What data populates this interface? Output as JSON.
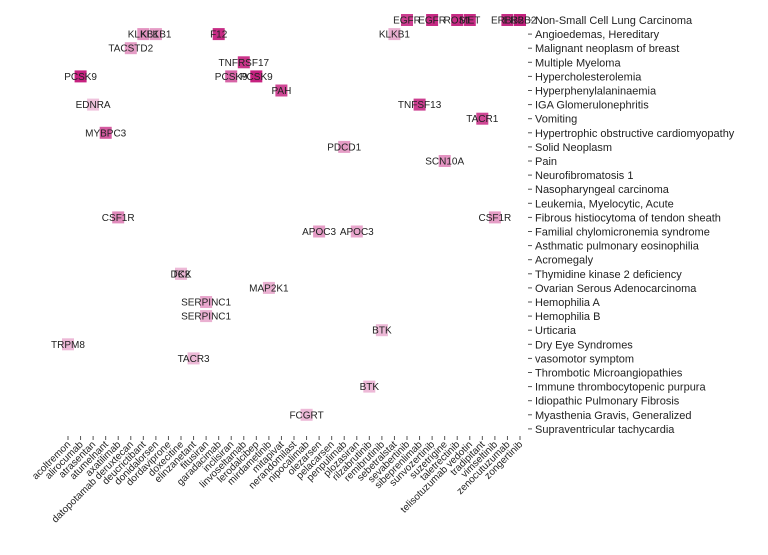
{
  "chart_data": {
    "type": "heatmap",
    "title": "",
    "xlabel": "",
    "ylabel": "",
    "color": "#c2187a",
    "columns": [
      "acoltremon",
      "alirocumab",
      "atrasentan",
      "atumelnant",
      "axatilimab",
      "datopotamab deruxtecan",
      "deucrictibant",
      "donidalorsen",
      "dordaviprone",
      "doxecitine",
      "elinzanetant",
      "fitusiran",
      "garadacimab",
      "inclisiran",
      "linvoseltamab",
      "lerodalcibep",
      "mirdametinib",
      "mitapivat",
      "nerandomilast",
      "nipocalimab",
      "olezarsen",
      "pelacarsen",
      "penpulimab",
      "plozasiran",
      "rilzabrutinib",
      "remibrutinib",
      "sebetralstat",
      "sevabertinib",
      "sibeprenlimab",
      "sunvozertinib",
      "suzetrigine",
      "taletrectinib",
      "telisotuzumab vedotin",
      "tradipitant",
      "vimseltinib",
      "zenocutuzumab",
      "zongertinib"
    ],
    "rows": [
      "Non-Small Cell Lung Carcinoma",
      "Angioedemas, Hereditary",
      "Malignant neoplasm of breast",
      "Multiple Myeloma",
      "Hypercholesterolemia",
      "Hyperphenylalaninaemia",
      "IGA Glomerulonephritis",
      "Vomiting",
      "Hypertrophic obstructive cardiomyopathy",
      "Solid Neoplasm",
      "Pain",
      "Neurofibromatosis 1",
      "Nasopharyngeal carcinoma",
      "Leukemia, Myelocytic, Acute",
      "Fibrous histiocytoma of tendon sheath",
      "Familial chylomicronemia syndrome",
      "Asthmatic pulmonary eosinophilia",
      "Acromegaly",
      "Thymidine kinase 2 deficiency",
      "Ovarian Serous Adenocarcinoma",
      "Hemophilia A",
      "Hemophilia B",
      "Urticaria",
      "Dry Eye Syndromes",
      "vasomotor symptom",
      "Thrombotic Microangiopathies",
      "Immune thrombocytopenic purpura",
      "Idiopathic Pulmonary Fibrosis",
      "Myasthenia Gravis, Generalized",
      "Supraventricular tachycardia"
    ],
    "cells": [
      {
        "col": 0,
        "row": 23,
        "label": "TRPM8",
        "intensity": 0.15
      },
      {
        "col": 1,
        "row": 4,
        "label": "PCSK9",
        "intensity": 0.95
      },
      {
        "col": 2,
        "row": 6,
        "label": "EDNRA",
        "intensity": 0.1
      },
      {
        "col": 3,
        "row": 8,
        "label": "MYBPC3",
        "intensity": 0.65
      },
      {
        "col": 4,
        "row": 14,
        "label": "CSF1R",
        "intensity": 0.4
      },
      {
        "col": 5,
        "row": 2,
        "label": "TACSTD2",
        "intensity": 0.3
      },
      {
        "col": 6,
        "row": 1,
        "label": "KLKB1",
        "intensity": 0.35
      },
      {
        "col": 7,
        "row": 1,
        "label": "KLKB1",
        "intensity": 0.3
      },
      {
        "col": 8,
        "row": 13,
        "label": "",
        "intensity": 0.0
      },
      {
        "col": 9,
        "row": 18,
        "label": "DCK",
        "intensity": 0.2
      },
      {
        "col": 9,
        "row": 18,
        "label": "TK2",
        "intensity": 0.15
      },
      {
        "col": 10,
        "row": 24,
        "label": "TACR3",
        "intensity": 0.15
      },
      {
        "col": 11,
        "row": 20,
        "label": "SERPINC1",
        "intensity": 0.25
      },
      {
        "col": 11,
        "row": 21,
        "label": "SERPINC1",
        "intensity": 0.2
      },
      {
        "col": 12,
        "row": 1,
        "label": "F12",
        "intensity": 0.9
      },
      {
        "col": 13,
        "row": 4,
        "label": "PCSK9",
        "intensity": 0.6
      },
      {
        "col": 14,
        "row": 3,
        "label": "TNFRSF17",
        "intensity": 0.85
      },
      {
        "col": 15,
        "row": 4,
        "label": "PCSK9",
        "intensity": 0.95
      },
      {
        "col": 16,
        "row": 19,
        "label": "MAP2K1",
        "intensity": 0.2
      },
      {
        "col": 17,
        "row": 5,
        "label": "PAH",
        "intensity": 0.75
      },
      {
        "col": 18,
        "row": 27,
        "label": "",
        "intensity": 0.0
      },
      {
        "col": 19,
        "row": 28,
        "label": "FCGRT",
        "intensity": 0.15
      },
      {
        "col": 20,
        "row": 15,
        "label": "APOC3",
        "intensity": 0.3
      },
      {
        "col": 21,
        "row": 0,
        "label": "",
        "intensity": 0.0
      },
      {
        "col": 22,
        "row": 9,
        "label": "PDCD1",
        "intensity": 0.3
      },
      {
        "col": 23,
        "row": 15,
        "label": "APOC3",
        "intensity": 0.25
      },
      {
        "col": 24,
        "row": 26,
        "label": "BTK",
        "intensity": 0.15
      },
      {
        "col": 25,
        "row": 22,
        "label": "BTK",
        "intensity": 0.15
      },
      {
        "col": 26,
        "row": 1,
        "label": "KLKB1",
        "intensity": 0.2
      },
      {
        "col": 27,
        "row": 0,
        "label": "EGFR",
        "intensity": 0.8
      },
      {
        "col": 28,
        "row": 6,
        "label": "TNFSF13",
        "intensity": 0.8
      },
      {
        "col": 29,
        "row": 0,
        "label": "EGFR",
        "intensity": 0.9
      },
      {
        "col": 30,
        "row": 10,
        "label": "SCN10A",
        "intensity": 0.35
      },
      {
        "col": 31,
        "row": 0,
        "label": "ROS1",
        "intensity": 0.9
      },
      {
        "col": 32,
        "row": 0,
        "label": "MET",
        "intensity": 0.9
      },
      {
        "col": 33,
        "row": 7,
        "label": "TACR1",
        "intensity": 0.75
      },
      {
        "col": 34,
        "row": 14,
        "label": "CSF1R",
        "intensity": 0.3
      },
      {
        "col": 35,
        "row": 0,
        "label": "ERBB2",
        "intensity": 0.9
      },
      {
        "col": 36,
        "row": 0,
        "label": "ERBB2",
        "intensity": 0.95
      }
    ],
    "legend": "none",
    "grid": false
  }
}
